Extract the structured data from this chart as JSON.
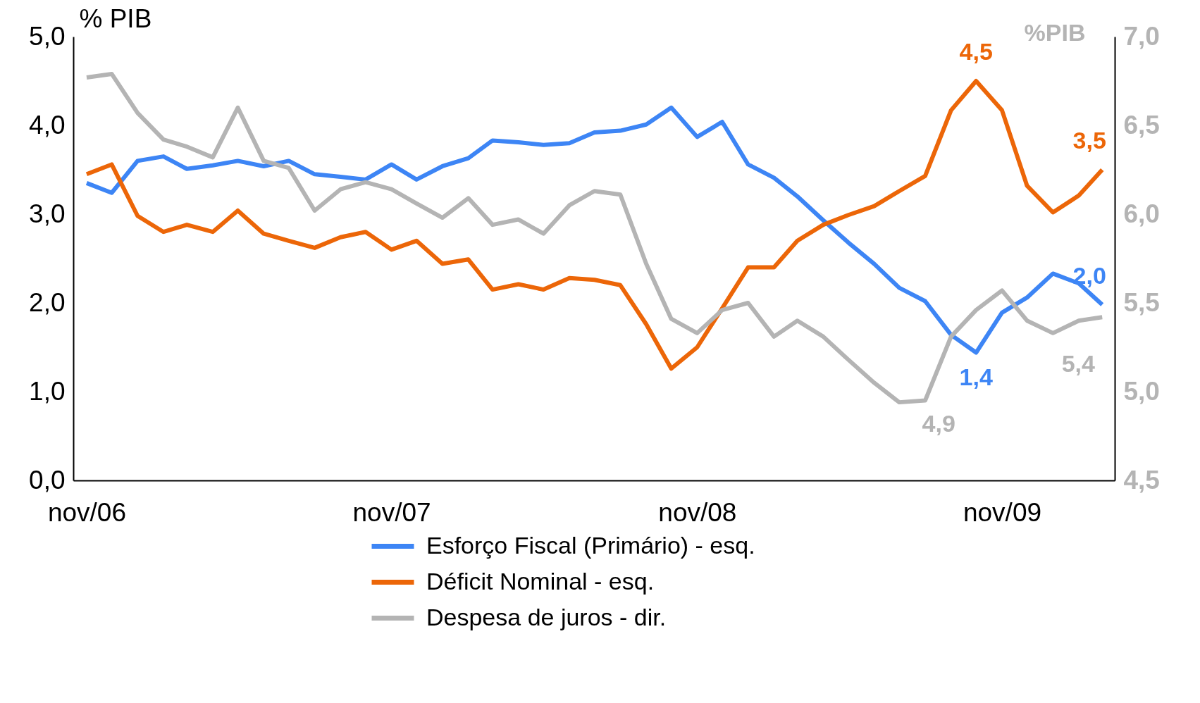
{
  "chart_data": {
    "type": "line",
    "ylabel": "% PIB",
    "y2label": "%PIB",
    "x": [
      "2006-11",
      "2006-12",
      "2007-01",
      "2007-02",
      "2007-03",
      "2007-04",
      "2007-05",
      "2007-06",
      "2007-07",
      "2007-08",
      "2007-09",
      "2007-10",
      "2007-11",
      "2007-12",
      "2008-01",
      "2008-02",
      "2008-03",
      "2008-04",
      "2008-05",
      "2008-06",
      "2008-07",
      "2008-08",
      "2008-09",
      "2008-10",
      "2008-11",
      "2008-12",
      "2009-01",
      "2009-02",
      "2009-03",
      "2009-04",
      "2009-05",
      "2009-06",
      "2009-07",
      "2009-08",
      "2009-09",
      "2009-10",
      "2009-11",
      "2009-12",
      "2010-01",
      "2010-02",
      "2010-03"
    ],
    "series": [
      {
        "name": "Esforço Fiscal (Primário) - esq.",
        "color": "#3d85f5",
        "values": [
          3.35,
          3.24,
          3.6,
          3.65,
          3.51,
          3.55,
          3.6,
          3.54,
          3.6,
          3.45,
          3.42,
          3.39,
          3.56,
          3.39,
          3.54,
          3.63,
          3.83,
          3.81,
          3.78,
          3.8,
          3.92,
          3.94,
          4.01,
          4.2,
          3.87,
          4.04,
          3.56,
          3.41,
          3.2,
          2.93,
          2.68,
          2.44,
          2.17,
          2.02,
          1.64,
          1.44,
          1.89,
          2.06,
          2.33,
          2.22,
          1.98
        ]
      },
      {
        "name": "Déficit Nominal - esq.",
        "color": "#ec6608",
        "values": [
          3.45,
          3.56,
          2.98,
          2.8,
          2.88,
          2.8,
          3.04,
          2.78,
          2.7,
          2.62,
          2.74,
          2.8,
          2.6,
          2.7,
          2.44,
          2.49,
          2.15,
          2.21,
          2.15,
          2.28,
          2.26,
          2.2,
          1.76,
          1.26,
          1.5,
          1.94,
          2.4,
          2.4,
          2.7,
          2.88,
          2.99,
          3.09,
          3.26,
          3.43,
          4.17,
          4.5,
          4.17,
          3.32,
          3.02,
          3.21,
          3.5
        ]
      },
      {
        "name": "Despesa de juros - dir.",
        "color": "#b4b4b4",
        "axis": "y2",
        "values": [
          6.77,
          6.79,
          6.57,
          6.42,
          6.38,
          6.32,
          6.6,
          6.3,
          6.26,
          6.02,
          6.14,
          6.18,
          6.14,
          6.06,
          5.98,
          6.09,
          5.94,
          5.97,
          5.89,
          6.05,
          6.13,
          6.11,
          5.72,
          5.41,
          5.33,
          5.46,
          5.5,
          5.31,
          5.4,
          5.31,
          5.18,
          5.05,
          4.94,
          4.95,
          5.31,
          5.46,
          5.57,
          5.4,
          5.33,
          5.4,
          5.42
        ]
      }
    ],
    "xlim": [
      "2006-10-16",
      "2010-03-16"
    ],
    "xticks": [
      {
        "value": "2006-11",
        "label": "nov/06"
      },
      {
        "value": "2007-11",
        "label": "nov/07"
      },
      {
        "value": "2008-11",
        "label": "nov/08"
      },
      {
        "value": "2009-11",
        "label": "nov/09"
      }
    ],
    "ylim": [
      0,
      5
    ],
    "yticks": [
      {
        "value": 0,
        "label": "0,0"
      },
      {
        "value": 1,
        "label": "1,0"
      },
      {
        "value": 2,
        "label": "2,0"
      },
      {
        "value": 3,
        "label": "3,0"
      },
      {
        "value": 4,
        "label": "4,0"
      },
      {
        "value": 5,
        "label": "5,0"
      }
    ],
    "y2lim": [
      4.5,
      7
    ],
    "y2ticks": [
      {
        "value": 4.5,
        "label": "4,5"
      },
      {
        "value": 5,
        "label": "5,0"
      },
      {
        "value": 5.5,
        "label": "5,5"
      },
      {
        "value": 6,
        "label": "6,0"
      },
      {
        "value": 6.5,
        "label": "6,5"
      },
      {
        "value": 7,
        "label": "7,0"
      }
    ],
    "annotations": [
      {
        "text": "4,5",
        "x": "2009-10",
        "y": 4.5
      },
      {
        "text": "3,5",
        "x": "2010-03",
        "y": 3.5
      },
      {
        "text": "2,0",
        "x": "2010-03",
        "y": 1.98
      },
      {
        "text": "1,4",
        "x": "2009-10",
        "y": 1.44
      },
      "4,9",
      "5,4"
    ],
    "grid": false,
    "legend": "bottom",
    "line_style": "solid"
  }
}
